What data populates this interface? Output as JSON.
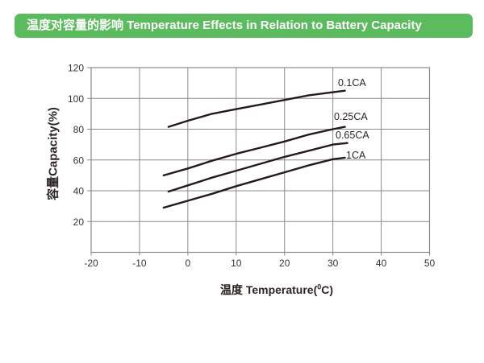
{
  "header": {
    "title": "温度对容量的影响 Temperature Effects in Relation to Battery Capacity"
  },
  "colors": {
    "header_bg": "#5cbb5e",
    "header_text": "#ffffff",
    "grid": "#8a8a8a",
    "curve": "#241a17",
    "tick_text": "#3a3331"
  },
  "chart_data": {
    "type": "line",
    "title": "温度对容量的影响 Temperature Effects in Relation to Battery Capacity",
    "xlabel": "温度 Temperature(°C)",
    "xlabel_parts": {
      "main": "温度 Temperature(",
      "sup": "0",
      "tail": "C)"
    },
    "ylabel": "容量Capacity(%)",
    "xlim": [
      -20,
      50
    ],
    "ylim": [
      0,
      120
    ],
    "x_ticks": [
      -20,
      -10,
      0,
      10,
      20,
      30,
      40,
      50
    ],
    "y_ticks": [
      20,
      40,
      60,
      80,
      100,
      120
    ],
    "grid": true,
    "legend_position": "end-of-line labels",
    "series": [
      {
        "name": "0.1CA",
        "x": [
          -4,
          0,
          5,
          10,
          15,
          20,
          25,
          30,
          32.5
        ],
        "y": [
          81.5,
          85.5,
          90,
          93,
          96,
          99,
          102,
          104,
          105
        ]
      },
      {
        "name": "0.25CA",
        "x": [
          -5,
          0,
          5,
          10,
          15,
          20,
          25,
          30,
          32.5
        ],
        "y": [
          50,
          54.5,
          59.5,
          64,
          68,
          72,
          76.5,
          80,
          81.5
        ]
      },
      {
        "name": "0.65CA",
        "x": [
          -4,
          0,
          5,
          10,
          15,
          20,
          25,
          30,
          33
        ],
        "y": [
          39.5,
          43.5,
          48.5,
          53,
          57.5,
          62,
          66,
          70,
          71
        ]
      },
      {
        "name": "1CA",
        "x": [
          -5,
          0,
          5,
          10,
          15,
          20,
          25,
          30,
          32.5
        ],
        "y": [
          29,
          33.5,
          38,
          43,
          47.5,
          52,
          56.5,
          60.5,
          61.5
        ]
      }
    ]
  }
}
